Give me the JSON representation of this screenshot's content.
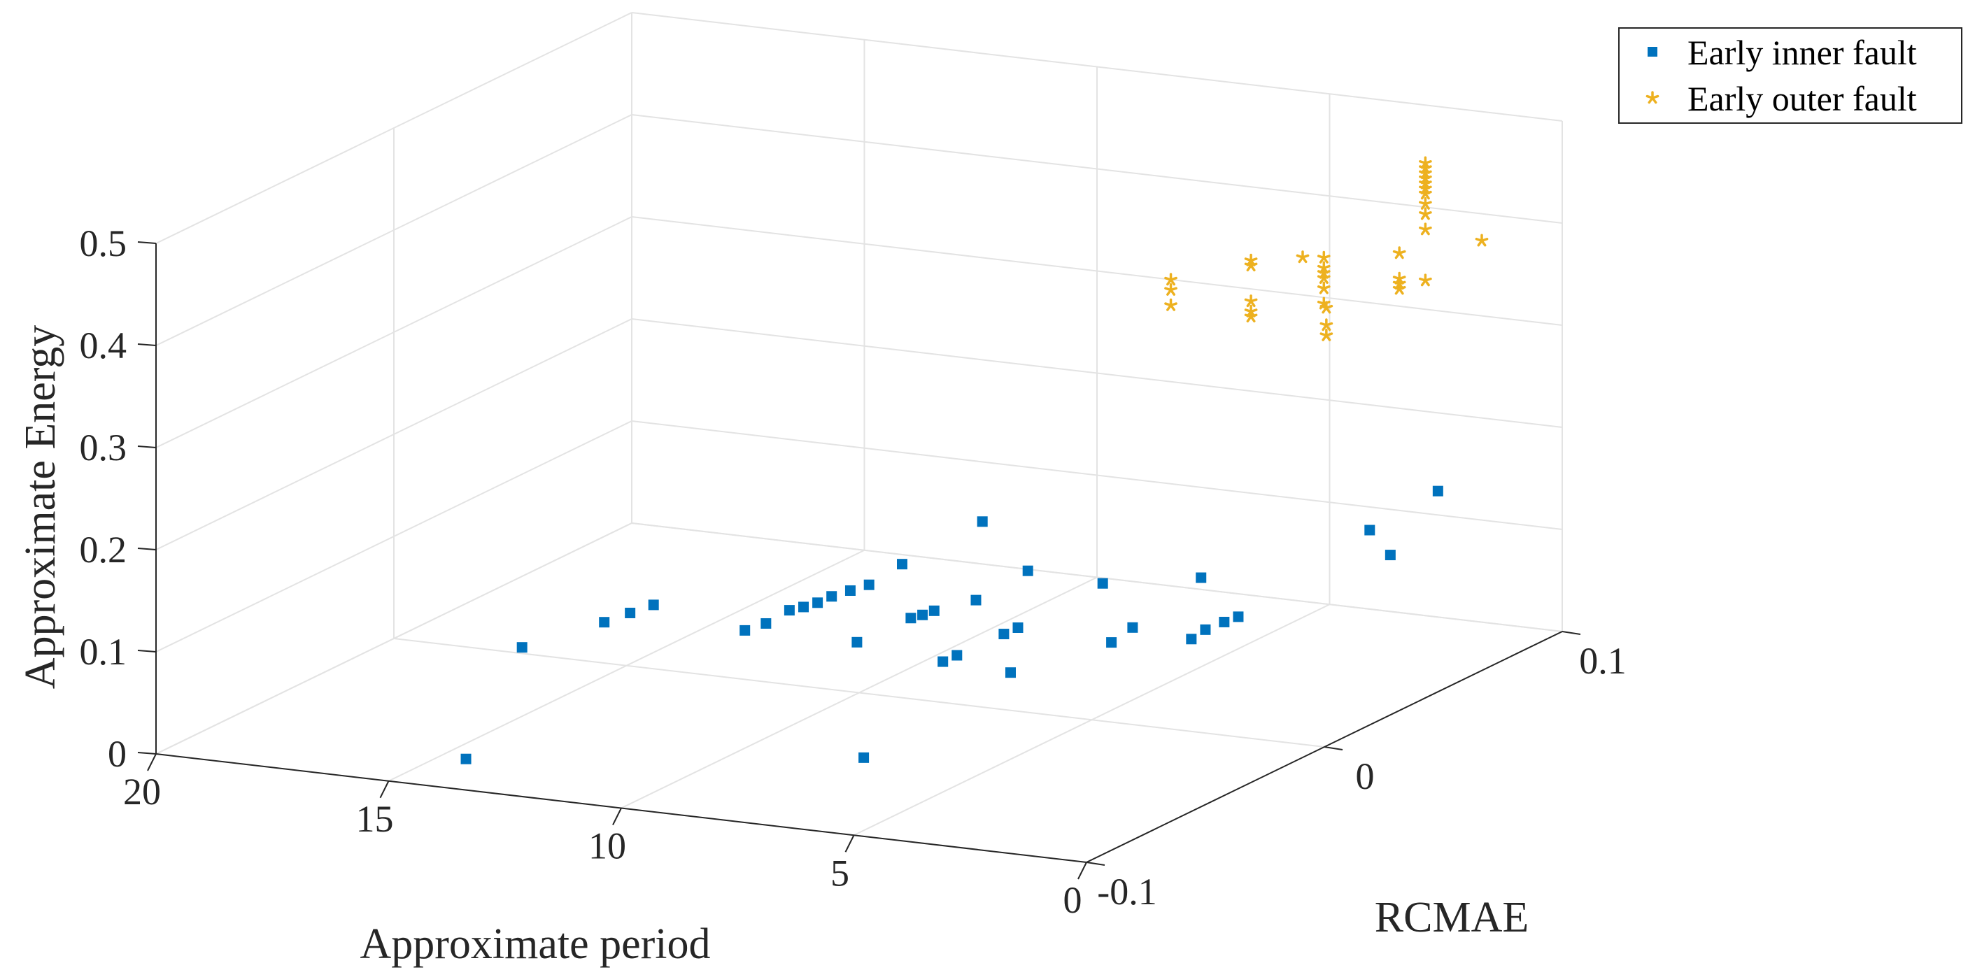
{
  "chart_data": {
    "type": "scatter3d",
    "title": "",
    "xlabel": "Approximate period",
    "ylabel": "RCMAE",
    "zlabel": "Approximate Energy",
    "xlim": [
      0,
      20
    ],
    "ylim": [
      -0.1,
      0.1
    ],
    "zlim": [
      0,
      0.5
    ],
    "x_ticks": [
      "0",
      "5",
      "10",
      "15",
      "20"
    ],
    "y_ticks": [
      "-0.1",
      "0",
      "0.1"
    ],
    "z_ticks": [
      "0",
      "0.1",
      "0.2",
      "0.3",
      "0.4",
      "0.5"
    ],
    "grid": true,
    "legend_position": "top-right",
    "colors": {
      "inner": "#0072BD",
      "outer": "#EDB120",
      "grid": "#e3e3e3",
      "axis": "#262626"
    },
    "series": [
      {
        "name": "Early inner fault",
        "marker": "square",
        "points": [
          [
            13.9,
            -0.089,
            0.015
          ],
          [
            15.2,
            -0.04,
            0.062
          ],
          [
            14.2,
            -0.025,
            0.075
          ],
          [
            13.9,
            -0.02,
            0.08
          ],
          [
            13.6,
            -0.016,
            0.085
          ],
          [
            12.2,
            -0.005,
            0.055
          ],
          [
            11.9,
            -0.002,
            0.06
          ],
          [
            11.6,
            0.002,
            0.07
          ],
          [
            11.4,
            0.004,
            0.072
          ],
          [
            11.2,
            0.006,
            0.075
          ],
          [
            11.0,
            0.008,
            0.08
          ],
          [
            10.7,
            0.01,
            0.085
          ],
          [
            10.4,
            0.012,
            0.09
          ],
          [
            10.2,
            0.022,
            0.1
          ],
          [
            9.6,
            0.044,
            0.12
          ],
          [
            10.2,
            0.003,
            0.045
          ],
          [
            9.4,
            0.01,
            0.065
          ],
          [
            9.2,
            0.011,
            0.068
          ],
          [
            9.0,
            0.012,
            0.072
          ],
          [
            8.0,
            0.01,
            0.09
          ],
          [
            8.2,
            0.0,
            0.04
          ],
          [
            8.0,
            0.002,
            0.045
          ],
          [
            7.6,
            0.024,
            0.105
          ],
          [
            7.4,
            0.01,
            0.06
          ],
          [
            7.2,
            0.012,
            0.065
          ],
          [
            7.0,
            0.005,
            0.03
          ],
          [
            6.4,
            0.032,
            0.09
          ],
          [
            5.6,
            0.02,
            0.05
          ],
          [
            5.4,
            0.025,
            0.06
          ],
          [
            4.9,
            0.044,
            0.09
          ],
          [
            4.7,
            0.036,
            0.04
          ],
          [
            4.5,
            0.038,
            0.048
          ],
          [
            4.3,
            0.042,
            0.052
          ],
          [
            4.1,
            0.044,
            0.056
          ],
          [
            7.6,
            -0.045,
            0.0
          ],
          [
            2.4,
            0.066,
            0.125
          ],
          [
            1.7,
            0.081,
            0.15
          ],
          [
            1.7,
            0.061,
            0.11
          ]
        ]
      },
      {
        "name": "Early outer fault",
        "marker": "star",
        "points": [
          [
            3.3,
            0.0,
            0.44
          ],
          [
            3.3,
            0.0,
            0.43
          ],
          [
            3.3,
            0.0,
            0.415
          ],
          [
            2.6,
            0.02,
            0.44
          ],
          [
            2.6,
            0.02,
            0.435
          ],
          [
            2.6,
            0.02,
            0.4
          ],
          [
            2.6,
            0.02,
            0.39
          ],
          [
            2.6,
            0.02,
            0.385
          ],
          [
            2.0,
            0.03,
            0.435
          ],
          [
            1.8,
            0.035,
            0.43
          ],
          [
            1.8,
            0.035,
            0.42
          ],
          [
            1.8,
            0.035,
            0.415
          ],
          [
            1.8,
            0.035,
            0.41
          ],
          [
            1.8,
            0.035,
            0.4
          ],
          [
            1.8,
            0.035,
            0.385
          ],
          [
            1.9,
            0.038,
            0.377
          ],
          [
            1.9,
            0.038,
            0.36
          ],
          [
            1.9,
            0.038,
            0.35
          ],
          [
            1.2,
            0.055,
            0.415
          ],
          [
            1.2,
            0.055,
            0.39
          ],
          [
            1.2,
            0.055,
            0.385
          ],
          [
            1.2,
            0.055,
            0.38
          ],
          [
            1.05,
            0.063,
            0.495
          ],
          [
            1.05,
            0.063,
            0.49
          ],
          [
            1.05,
            0.063,
            0.485
          ],
          [
            1.05,
            0.063,
            0.48
          ],
          [
            1.05,
            0.063,
            0.475
          ],
          [
            1.05,
            0.063,
            0.47
          ],
          [
            1.05,
            0.063,
            0.465
          ],
          [
            1.05,
            0.063,
            0.455
          ],
          [
            1.05,
            0.063,
            0.445
          ],
          [
            1.05,
            0.063,
            0.43
          ],
          [
            1.05,
            0.063,
            0.38
          ],
          [
            0.4,
            0.074,
            0.41
          ]
        ]
      }
    ]
  }
}
